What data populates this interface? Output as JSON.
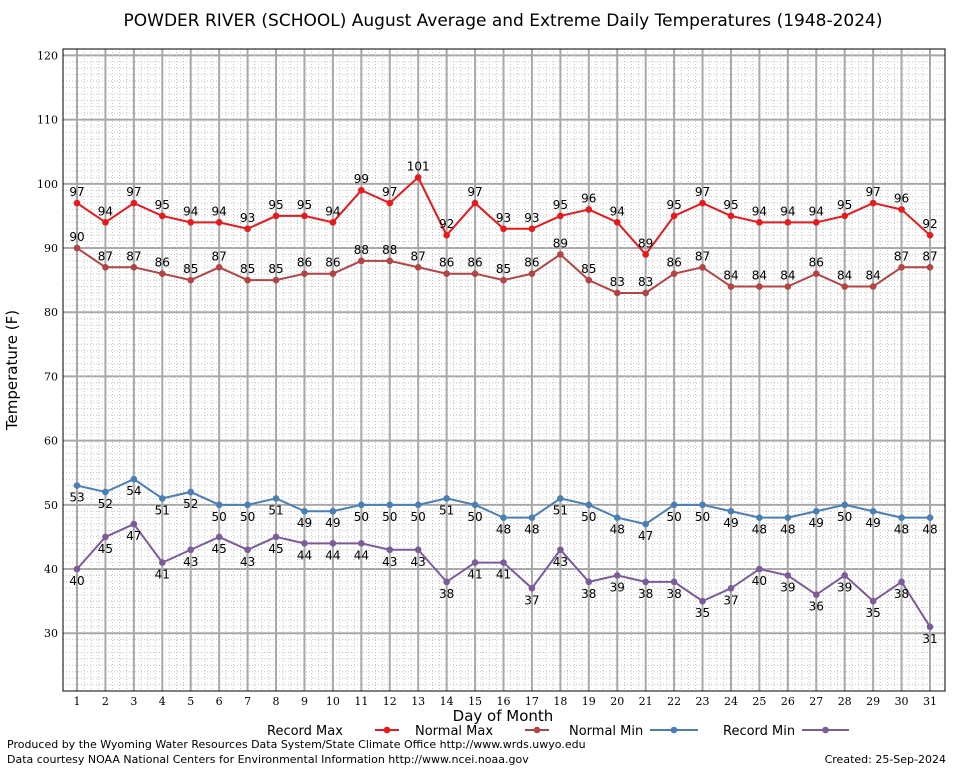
{
  "chart_data": {
    "type": "line",
    "title": "POWDER RIVER (SCHOOL) August Average and Extreme Daily Temperatures (1948-2024)",
    "xlabel": "Day of Month",
    "ylabel": "Temperature (F)",
    "xlim": [
      1,
      31
    ],
    "ylim": [
      21,
      121
    ],
    "y_ticks": [
      30,
      40,
      50,
      60,
      70,
      80,
      90,
      100,
      110,
      120
    ],
    "x": [
      1,
      2,
      3,
      4,
      5,
      6,
      7,
      8,
      9,
      10,
      11,
      12,
      13,
      14,
      15,
      16,
      17,
      18,
      19,
      20,
      21,
      22,
      23,
      24,
      25,
      26,
      27,
      28,
      29,
      30,
      31
    ],
    "grid": true,
    "legend_position": "bottom",
    "series": [
      {
        "name": "Record Max",
        "color": "#e8191d",
        "label_position": "above",
        "values": [
          97,
          94,
          97,
          95,
          94,
          94,
          93,
          95,
          95,
          94,
          99,
          97,
          101,
          92,
          97,
          93,
          93,
          95,
          96,
          94,
          89,
          95,
          97,
          95,
          94,
          94,
          94,
          95,
          97,
          96,
          92
        ]
      },
      {
        "name": "Normal Max",
        "color": "#b44444",
        "label_position": "above",
        "values": [
          90,
          87,
          87,
          86,
          85,
          87,
          85,
          85,
          86,
          86,
          88,
          88,
          87,
          86,
          86,
          85,
          86,
          89,
          85,
          83,
          83,
          86,
          87,
          84,
          84,
          84,
          86,
          84,
          84,
          87,
          87
        ]
      },
      {
        "name": "Normal Min",
        "color": "#4a7fb5",
        "label_position": "below",
        "values": [
          53,
          52,
          54,
          51,
          52,
          50,
          50,
          51,
          49,
          49,
          50,
          50,
          50,
          51,
          50,
          48,
          48,
          51,
          50,
          48,
          47,
          50,
          50,
          49,
          48,
          48,
          49,
          50,
          49,
          48,
          48
        ]
      },
      {
        "name": "Record Min",
        "color": "#7d5b9b",
        "label_position": "below",
        "values": [
          40,
          45,
          47,
          41,
          43,
          45,
          43,
          45,
          44,
          44,
          44,
          43,
          43,
          38,
          41,
          41,
          37,
          43,
          38,
          39,
          38,
          38,
          35,
          37,
          40,
          39,
          36,
          39,
          35,
          38,
          31
        ]
      }
    ]
  },
  "footer": {
    "produced_by": "Produced by the Wyoming Water Resources Data System/State Climate Office http://www.wrds.uwyo.edu",
    "data_courtesy": "Data courtesy NOAA National Centers for Environmental Information http://www.ncei.noaa.gov",
    "created": "Created:  25-Sep-2024"
  }
}
